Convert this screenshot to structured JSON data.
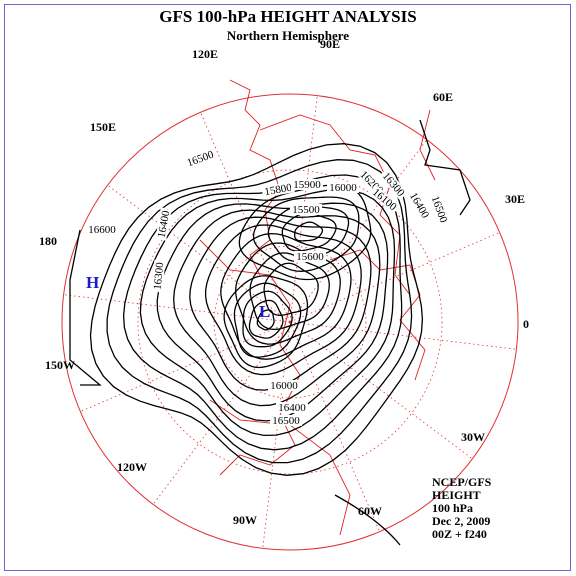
{
  "header": {
    "title": "GFS 100-hPa HEIGHT ANALYSIS",
    "subtitle": "Northern Hemisphere"
  },
  "longitudes": [
    "90E",
    "120E",
    "60E",
    "150E",
    "30E",
    "180",
    "0",
    "150W",
    "30W",
    "120W",
    "90W",
    "60W"
  ],
  "contour_labels": [
    16600,
    16500,
    16400,
    16300,
    15800,
    15900,
    16000,
    15500,
    15600,
    16200,
    16300,
    16100,
    16400,
    16500,
    16000,
    16400,
    16500
  ],
  "centers": {
    "high": "H",
    "low": "L"
  },
  "info": [
    "NCEP/GFS",
    "HEIGHT",
    "100 hPa",
    "Dec 2, 2009",
    "00Z + f240"
  ]
}
